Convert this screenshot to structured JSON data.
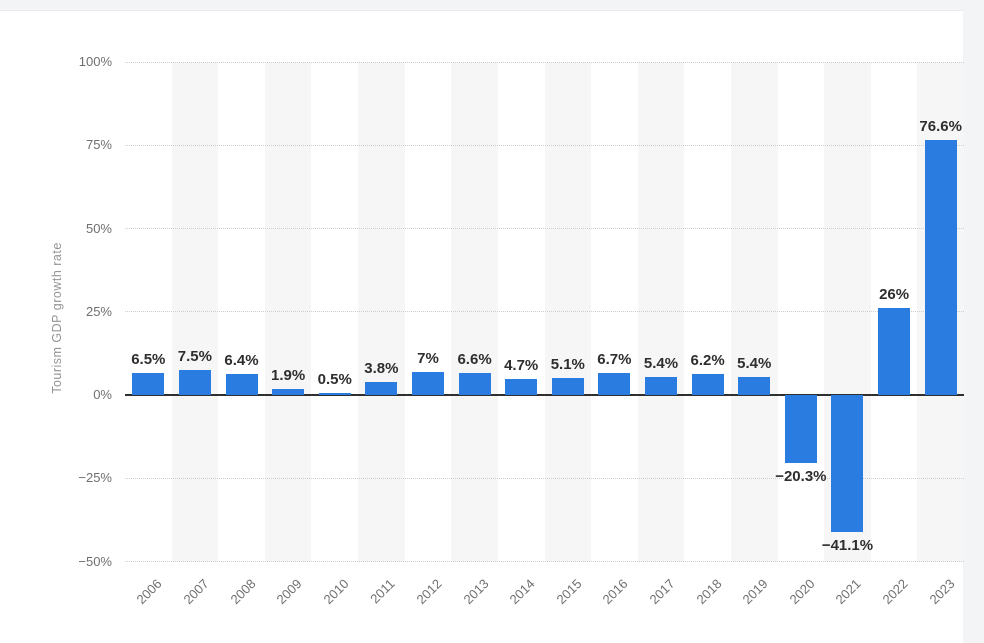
{
  "page": {
    "background_color": "#f3f4f6",
    "panel_color": "#ffffff"
  },
  "chart_data": {
    "type": "bar",
    "title": "",
    "xlabel": "",
    "ylabel": "Tourism GDP growth rate",
    "categories": [
      "2006",
      "2007",
      "2008",
      "2009",
      "2010",
      "2011",
      "2012",
      "2013",
      "2014",
      "2015",
      "2016",
      "2017",
      "2018",
      "2019",
      "2020",
      "2021",
      "2022",
      "2023"
    ],
    "values": [
      6.5,
      7.5,
      6.4,
      1.9,
      0.5,
      3.8,
      7,
      6.6,
      4.7,
      5.1,
      6.7,
      5.4,
      6.2,
      5.4,
      -20.3,
      -41.1,
      26,
      76.6
    ],
    "value_labels": [
      "6.5%",
      "7.5%",
      "6.4%",
      "1.9%",
      "0.5%",
      "3.8%",
      "7%",
      "6.6%",
      "4.7%",
      "5.1%",
      "6.7%",
      "5.4%",
      "6.2%",
      "5.4%",
      "−20.3%",
      "−41.1%",
      "26%",
      "76.6%"
    ],
    "ylim": [
      -50,
      100
    ],
    "yticks": [
      100,
      75,
      50,
      25,
      0,
      -25,
      -50
    ],
    "ytick_labels": [
      "100%",
      "75%",
      "50%",
      "25%",
      "0%",
      "−25%",
      "−50%"
    ],
    "grid": "horizontal-dotted",
    "legend": "none",
    "bar_color": "#2b7ce0",
    "stripe_color": "#f6f6f7",
    "zero_line_color": "#2f2f2f",
    "value_label_color": "#2e2e2e",
    "tick_label_color": "#6f6f6f",
    "axis_title_color": "#949494"
  }
}
